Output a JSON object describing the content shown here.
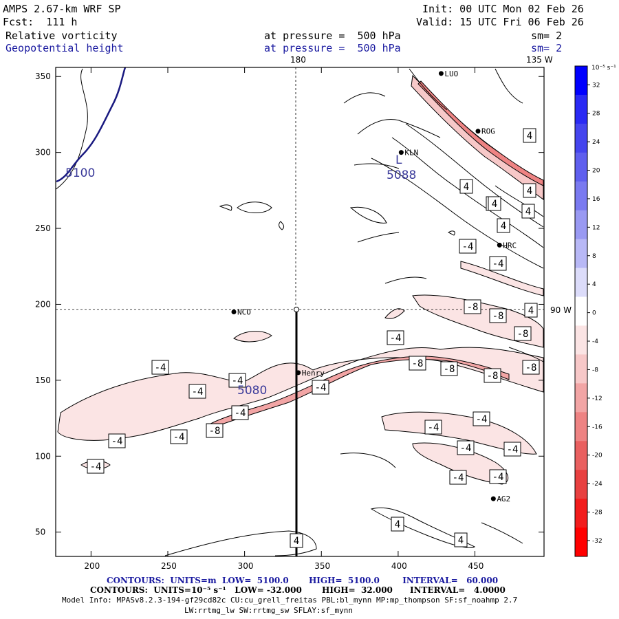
{
  "header": {
    "model": "AMPS 2.67-km WRF SP",
    "forecast": "Fcst:  111 h",
    "init": "Init: 00 UTC Mon 02 Feb 26",
    "valid": "Valid: 15 UTC Fri 06 Feb 26",
    "field1": "Relative vorticity",
    "field2": "Geopotential height",
    "level1": "at pressure =  500 hPa",
    "level2": "at pressure =  500 hPa",
    "sm1": "sm= 2",
    "sm2": "sm= 2"
  },
  "map": {
    "lon_labels": {
      "top": "180",
      "top_right": "135 W",
      "right": "90 W"
    },
    "x_ticks": [
      "200",
      "250",
      "300",
      "350",
      "400",
      "450"
    ],
    "y_ticks": [
      "50",
      "100",
      "150",
      "200",
      "250",
      "300",
      "350"
    ],
    "height_labels": [
      "5100",
      "5088",
      "5080"
    ],
    "stations": [
      {
        "name": "LUO",
        "x": 428,
        "y": 352
      },
      {
        "name": "ROG",
        "x": 452,
        "y": 314
      },
      {
        "name": "KLN",
        "x": 402,
        "y": 300
      },
      {
        "name": "HRC",
        "x": 466,
        "y": 239
      },
      {
        "name": "NCO",
        "x": 293,
        "y": 195
      },
      {
        "name": "Henry",
        "x": 335,
        "y": 155
      },
      {
        "name": "AG2",
        "x": 462,
        "y": 72
      }
    ],
    "contour_labels": [
      "4",
      "4",
      "4",
      "4",
      "4",
      "4",
      "4",
      "4",
      "4",
      "4",
      "4",
      "-4",
      "-4",
      "-4",
      "-4",
      "-4",
      "-4",
      "-4",
      "-4",
      "-4",
      "-4",
      "-4",
      "-4",
      "-4",
      "-4",
      "-4",
      "-4",
      "-4",
      "-8",
      "-8",
      "-8",
      "-8",
      "-8",
      "-8",
      "-8",
      "-8"
    ]
  },
  "colorbar": {
    "unit": "10⁻⁵ s⁻¹",
    "ticks": [
      "32",
      "28",
      "24",
      "20",
      "16",
      "12",
      "8",
      "4",
      "0",
      "-4",
      "-8",
      "-12",
      "-16",
      "-20",
      "-24",
      "-28",
      "-32"
    ],
    "colors": [
      "#0000ff",
      "#2a2af4",
      "#4545ee",
      "#5f5fee",
      "#7a7af0",
      "#9999f2",
      "#b8b8f6",
      "#dcdcfa",
      "#ffffff",
      "#fbe4e4",
      "#f7c8c8",
      "#f2a5a5",
      "#ee8383",
      "#e96060",
      "#e84040",
      "#f21c1c",
      "#ff0000"
    ]
  },
  "footer": {
    "line1": "CONTOURS:  UNITS=m  LOW=  5100.0       HIGH=  5100.0        INTERVAL=   60.000",
    "line2": "CONTOURS:  UNITS=10⁻⁵ s⁻¹   LOW= -32.000       HIGH=  32.000      INTERVAL=   4.0000",
    "line3": "Model Info: MPASv8.2.3-194-gf29cd82c CU:cu_grell_freitas PBL:bl_mynn MP:mp_thompson SF:sf_noahmp 2.7",
    "line4": "LW:rrtmg_lw SW:rrtmg_sw SFLAY:sf_mynn"
  }
}
